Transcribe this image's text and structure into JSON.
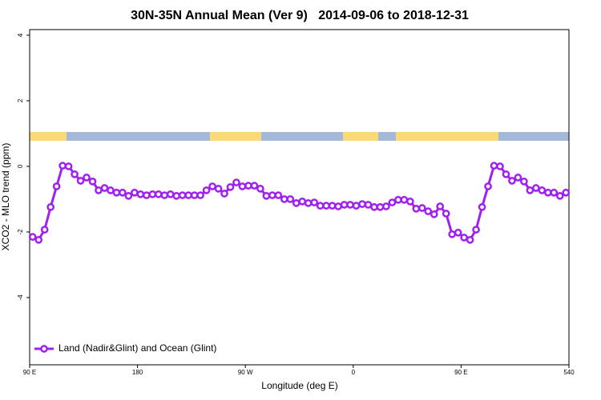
{
  "chart_data": {
    "type": "line",
    "title": "30N-35N Annual Mean (Ver 9)   2014-09-06 to 2018-12-31",
    "x_label": "Longitude (deg E)",
    "y_label": "XCO2 - MLO trend (ppm)",
    "x": [
      92.5,
      97.5,
      102.5,
      107.5,
      112.5,
      117.5,
      122.5,
      127.5,
      132.5,
      137.5,
      142.5,
      147.5,
      152.5,
      157.5,
      162.5,
      167.5,
      172.5,
      177.5,
      182.5,
      187.5,
      192.5,
      197.5,
      202.5,
      207.5,
      212.5,
      217.5,
      222.5,
      227.5,
      232.5,
      237.5,
      242.5,
      247.5,
      252.5,
      257.5,
      262.5,
      267.5,
      272.5,
      277.5,
      282.5,
      287.5,
      292.5,
      297.5,
      302.5,
      307.5,
      312.5,
      317.5,
      322.5,
      327.5,
      332.5,
      337.5,
      342.5,
      347.5,
      352.5,
      357.5,
      362.5,
      367.5,
      372.5,
      377.5,
      382.5,
      387.5,
      392.5,
      397.5,
      402.5,
      407.5,
      412.5,
      417.5,
      422.5,
      427.5,
      432.5,
      437.5,
      442.5,
      447.5,
      452.5,
      457.5,
      462.5,
      467.5,
      472.5,
      477.5,
      482.5,
      487.5,
      492.5,
      497.5,
      502.5,
      507.5,
      512.5,
      517.5,
      522.5,
      527.5,
      532.5,
      537.5
    ],
    "series": [
      {
        "name": "Land (Nadir&Glint) and Ocean (Glint)",
        "color": "#a020f0",
        "values": [
          -2.15,
          -2.24,
          -1.93,
          -1.24,
          -0.61,
          0.02,
          0,
          -0.24,
          -0.44,
          -0.34,
          -0.46,
          -0.73,
          -0.66,
          -0.73,
          -0.8,
          -0.8,
          -0.9,
          -0.8,
          -0.85,
          -0.88,
          -0.85,
          -0.85,
          -0.88,
          -0.85,
          -0.9,
          -0.88,
          -0.88,
          -0.88,
          -0.88,
          -0.73,
          -0.61,
          -0.68,
          -0.83,
          -0.63,
          -0.49,
          -0.61,
          -0.59,
          -0.59,
          -0.68,
          -0.9,
          -0.88,
          -0.88,
          -1.0,
          -1.0,
          -1.12,
          -1.07,
          -1.12,
          -1.1,
          -1.2,
          -1.2,
          -1.2,
          -1.22,
          -1.17,
          -1.17,
          -1.2,
          -1.15,
          -1.17,
          -1.24,
          -1.24,
          -1.22,
          -1.1,
          -1.02,
          -1.02,
          -1.07,
          -1.29,
          -1.27,
          -1.37,
          -1.46,
          -1.22,
          -1.44,
          -2.07,
          -2.02,
          -2.17,
          -2.24,
          -1.93,
          -1.24,
          -0.61,
          0.02,
          0,
          -0.24,
          -0.44,
          -0.34,
          -0.46,
          -0.73,
          -0.66,
          -0.73,
          -0.8,
          -0.8,
          -0.9,
          -0.8
        ]
      }
    ],
    "xlim": [
      90,
      540
    ],
    "xticks": [
      {
        "value": 90,
        "label": "90 E"
      },
      180,
      {
        "value": 270,
        "label": "90 W"
      },
      {
        "value": 360,
        "label": "0"
      },
      {
        "value": 450,
        "label": "90 E"
      },
      540
    ],
    "ylim": [
      -6.05,
      4.17
    ],
    "yticks": [
      -4,
      -2,
      0,
      2,
      4
    ],
    "legend": "bottomleft"
  }
}
